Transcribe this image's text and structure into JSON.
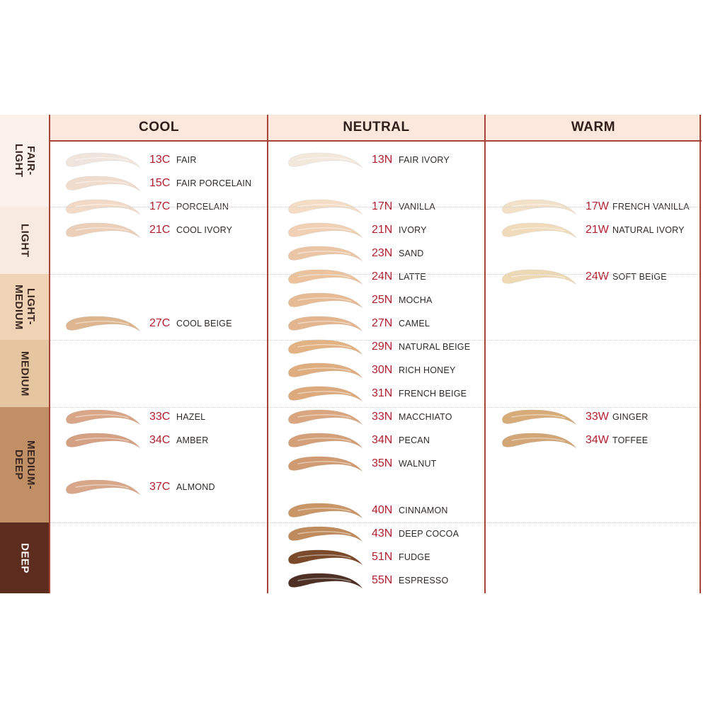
{
  "columns": [
    {
      "label": "COOL",
      "shades": [
        {
          "code": "13C",
          "name": "FAIR",
          "color": "#efe5dd"
        },
        {
          "code": "15C",
          "name": "FAIR PORCELAIN",
          "color": "#f0dccd"
        },
        {
          "code": "17C",
          "name": "PORCELAIN",
          "color": "#f2dac6"
        },
        {
          "code": "21C",
          "name": "COOL IVORY",
          "color": "#ebcfb9"
        },
        {
          "code": "27C",
          "name": "COOL BEIGE",
          "color": "#ddb690"
        },
        {
          "code": "33C",
          "name": "HAZEL",
          "color": "#d9a687"
        },
        {
          "code": "34C",
          "name": "AMBER",
          "color": "#d5a184"
        },
        {
          "code": "37C",
          "name": "ALMOND",
          "color": "#d8a689"
        }
      ]
    },
    {
      "label": "NEUTRAL",
      "shades": [
        {
          "code": "13N",
          "name": "FAIR IVORY",
          "color": "#f3e8dc"
        },
        {
          "code": "17N",
          "name": "VANILLA",
          "color": "#f4dcc5"
        },
        {
          "code": "21N",
          "name": "IVORY",
          "color": "#f0d1b6"
        },
        {
          "code": "23N",
          "name": "SAND",
          "color": "#ebc6a6"
        },
        {
          "code": "24N",
          "name": "LATTE",
          "color": "#ebc29b"
        },
        {
          "code": "25N",
          "name": "MOCHA",
          "color": "#e6bb96"
        },
        {
          "code": "27N",
          "name": "CAMEL",
          "color": "#e3b68f"
        },
        {
          "code": "29N",
          "name": "NATURAL BEIGE",
          "color": "#e2b283"
        },
        {
          "code": "30N",
          "name": "RICH HONEY",
          "color": "#dfae80"
        },
        {
          "code": "31N",
          "name": "FRENCH BEIGE",
          "color": "#dcaa7c"
        },
        {
          "code": "33N",
          "name": "MACCHIATO",
          "color": "#d9a67f"
        },
        {
          "code": "34N",
          "name": "PECAN",
          "color": "#d4a079"
        },
        {
          "code": "35N",
          "name": "WALNUT",
          "color": "#d09b72"
        },
        {
          "code": "40N",
          "name": "CINNAMON",
          "color": "#c99767"
        },
        {
          "code": "43N",
          "name": "DEEP COCOA",
          "color": "#bf8b5c"
        },
        {
          "code": "51N",
          "name": "FUDGE",
          "color": "#7a4a2a"
        },
        {
          "code": "55N",
          "name": "ESPRESSO",
          "color": "#4e3024"
        }
      ]
    },
    {
      "label": "WARM",
      "shades": [
        {
          "code": "17W",
          "name": "FRENCH VANILLA",
          "color": "#f2e0c8"
        },
        {
          "code": "21W",
          "name": "NATURAL IVORY",
          "color": "#f0dcbd"
        },
        {
          "code": "24W",
          "name": "SOFT BEIGE",
          "color": "#eed9b5"
        },
        {
          "code": "33W",
          "name": "GINGER",
          "color": "#d8ac79"
        },
        {
          "code": "34W",
          "name": "TOFFEE",
          "color": "#d2a676"
        }
      ]
    }
  ],
  "depth_levels": [
    {
      "label": "FAIR-\nLIGHT",
      "color": "#fcf2eb"
    },
    {
      "label": "LIGHT",
      "color": "#f9eadf"
    },
    {
      "label": "LIGHT-\nMEDIUM",
      "color": "#efd3b4"
    },
    {
      "label": "MEDIUM",
      "color": "#e6c6a1"
    },
    {
      "label": "MEDIUM-\nDEEP",
      "color": "#c08f66"
    },
    {
      "label": "DEEP",
      "color": "#5c2d1e"
    }
  ],
  "colors": {
    "border": "#a8433a",
    "code_text": "#b01e2e",
    "header_bg": "#fce8dc"
  }
}
